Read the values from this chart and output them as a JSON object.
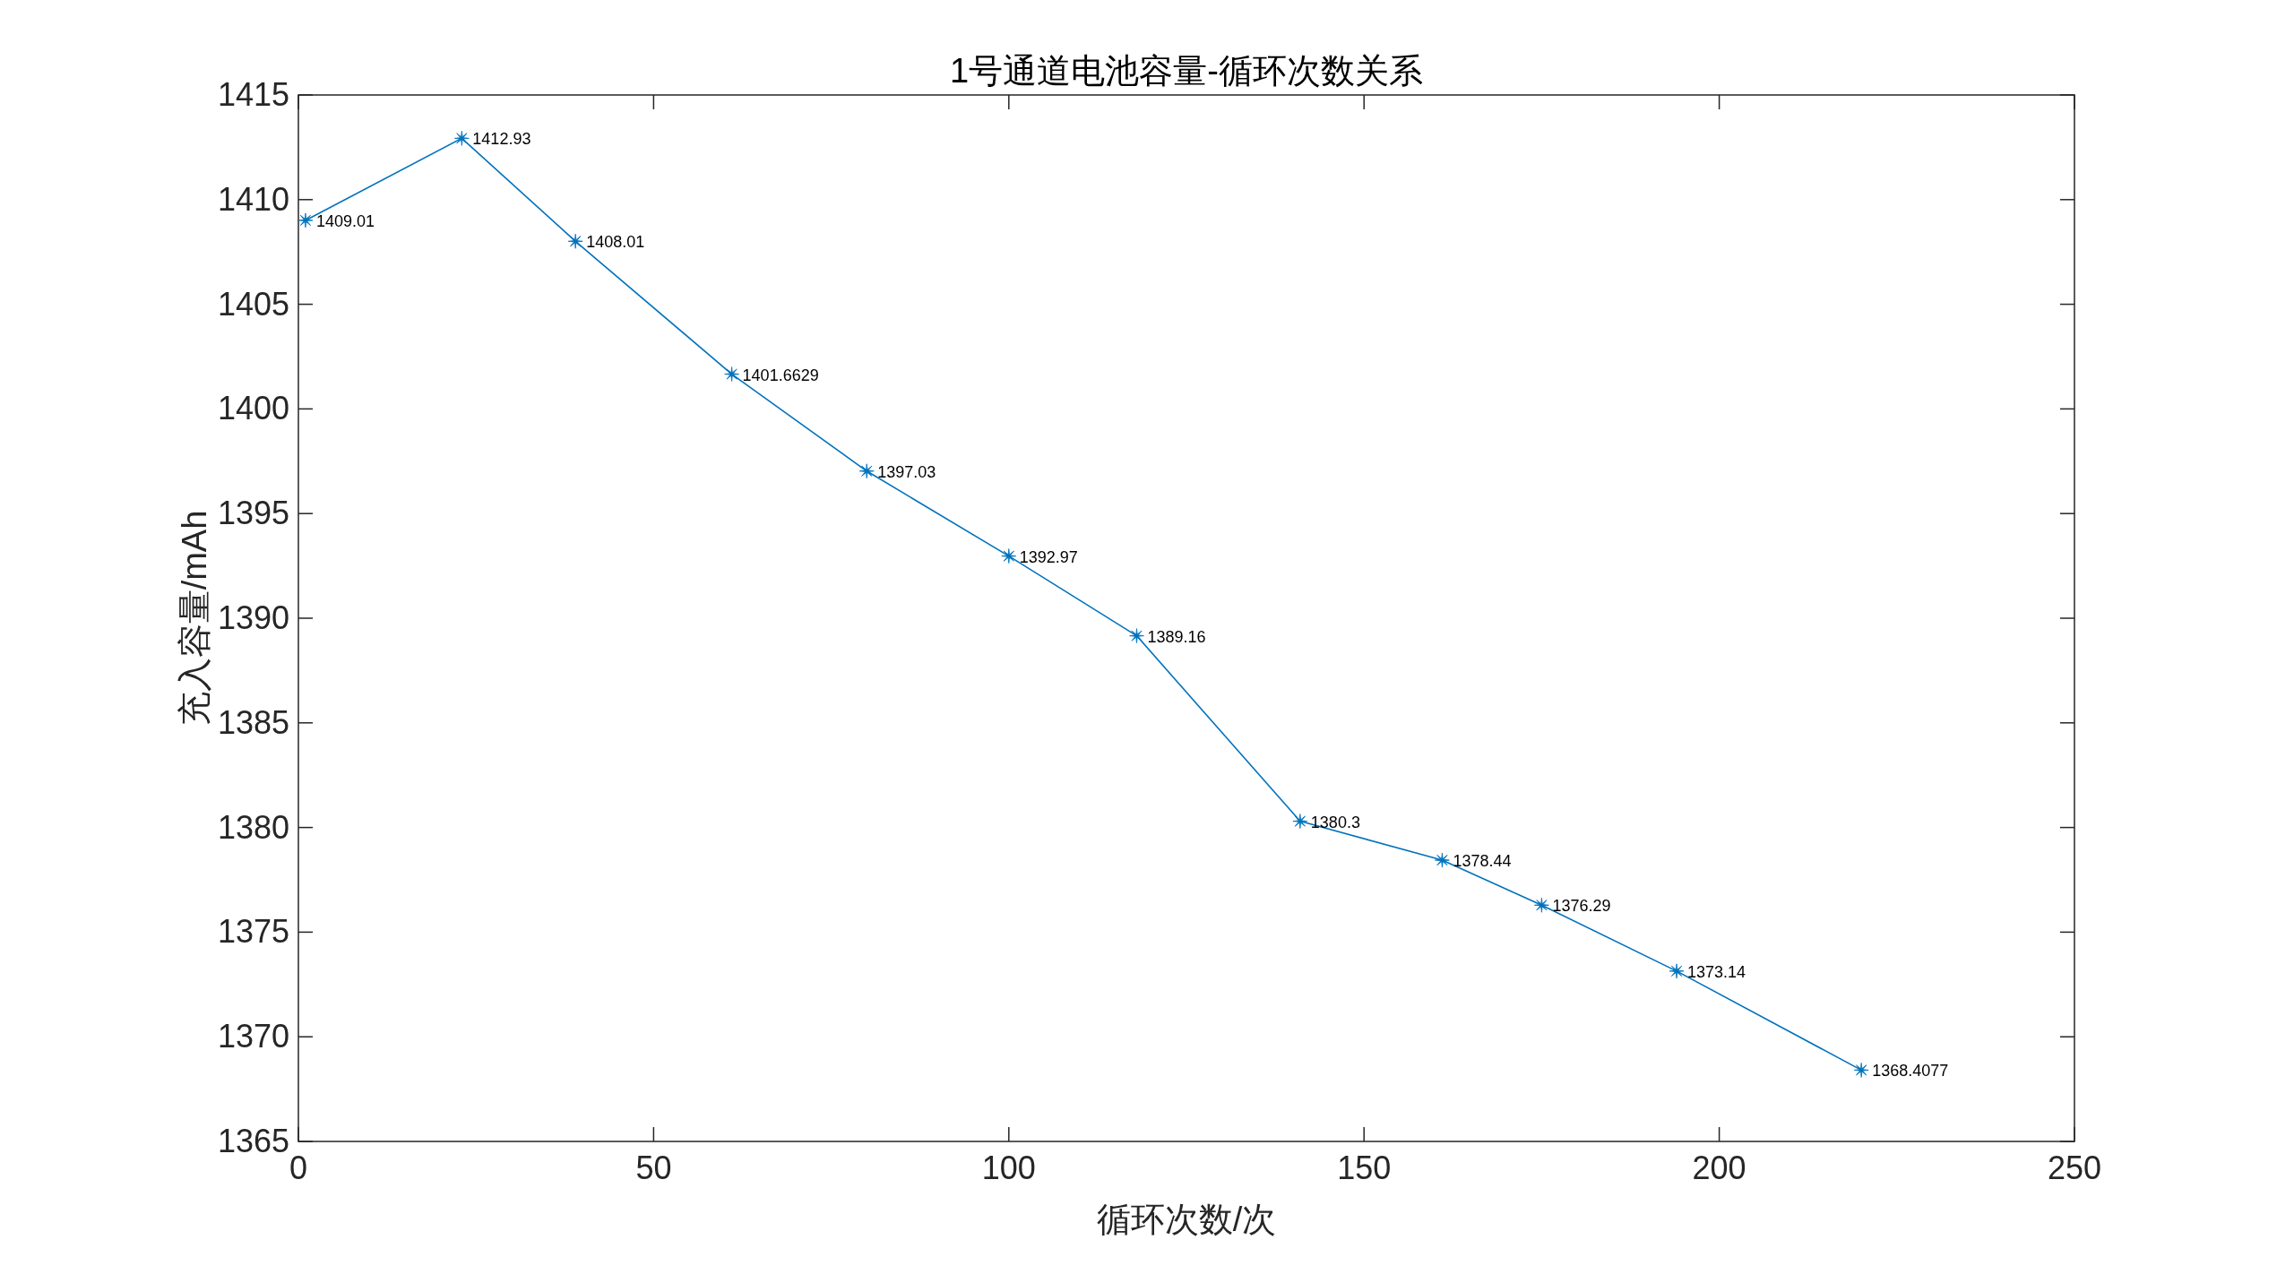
{
  "chart_data": {
    "type": "line",
    "title": "1号通道电池容量-循环次数关系",
    "xlabel": "循环次数/次",
    "ylabel": "充入容量/mAh",
    "x": [
      1,
      23,
      39,
      61,
      80,
      100,
      118,
      141,
      161,
      175,
      194,
      220
    ],
    "values": [
      1409.01,
      1412.93,
      1408.01,
      1401.6629,
      1397.03,
      1392.97,
      1389.16,
      1380.3,
      1378.44,
      1376.29,
      1373.14,
      1368.4077
    ],
    "color": "#0072bd",
    "marker": "star",
    "data_labels": true,
    "xlim": [
      0,
      250
    ],
    "xticks": [
      0,
      50,
      100,
      150,
      200,
      250
    ],
    "ylim": [
      1365,
      1415
    ],
    "yticks": [
      1365,
      1370,
      1375,
      1380,
      1385,
      1390,
      1395,
      1400,
      1405,
      1410,
      1415
    ]
  }
}
